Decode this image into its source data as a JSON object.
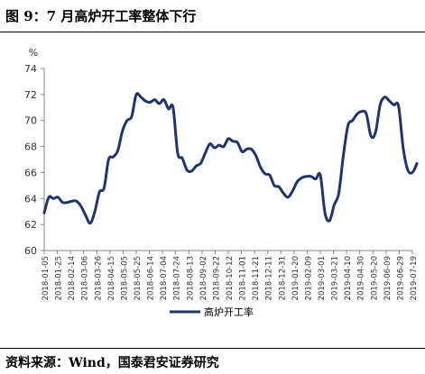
{
  "header": {
    "title": "图 9：7 月高炉开工率整体下行"
  },
  "footer": {
    "source": "资料来源：Wind，国泰君安证券研究"
  },
  "chart_data": {
    "type": "line",
    "ylabel": "%",
    "ylim": [
      60,
      74
    ],
    "yticks": [
      60,
      62,
      64,
      66,
      68,
      70,
      72,
      74
    ],
    "grid": false,
    "legend_position": "bottom",
    "line_color": "#1f3472",
    "x_tick_labels": [
      "2018-01-05",
      "2018-01-25",
      "2018-02-14",
      "2018-03-06",
      "2018-03-26",
      "2018-04-15",
      "2018-05-05",
      "2018-05-25",
      "2018-06-14",
      "2018-07-04",
      "2018-07-24",
      "2018-08-13",
      "2018-09-02",
      "2018-09-22",
      "2018-10-12",
      "2018-11-01",
      "2018-11-21",
      "2018-12-11",
      "2018-12-31",
      "2019-01-20",
      "2019-02-09",
      "2019-03-01",
      "2019-03-21",
      "2019-04-10",
      "2019-04-30",
      "2019-05-20",
      "2019-06-09",
      "2019-06-29",
      "2019-07-19"
    ],
    "series": [
      {
        "name": "高炉开工率",
        "x": [
          "2018-01-05",
          "2018-01-12",
          "2018-01-19",
          "2018-01-26",
          "2018-02-02",
          "2018-02-09",
          "2018-02-16",
          "2018-02-23",
          "2018-03-02",
          "2018-03-09",
          "2018-03-16",
          "2018-03-23",
          "2018-03-30",
          "2018-04-06",
          "2018-04-13",
          "2018-04-20",
          "2018-04-27",
          "2018-05-04",
          "2018-05-11",
          "2018-05-18",
          "2018-05-25",
          "2018-06-01",
          "2018-06-08",
          "2018-06-15",
          "2018-06-22",
          "2018-06-29",
          "2018-07-06",
          "2018-07-13",
          "2018-07-20",
          "2018-07-27",
          "2018-08-03",
          "2018-08-10",
          "2018-08-17",
          "2018-08-24",
          "2018-08-31",
          "2018-09-07",
          "2018-09-14",
          "2018-09-21",
          "2018-09-28",
          "2018-10-05",
          "2018-10-12",
          "2018-10-19",
          "2018-10-26",
          "2018-11-02",
          "2018-11-09",
          "2018-11-16",
          "2018-11-23",
          "2018-11-30",
          "2018-12-07",
          "2018-12-14",
          "2018-12-21",
          "2018-12-28",
          "2019-01-04",
          "2019-01-11",
          "2019-01-18",
          "2019-01-25",
          "2019-02-01",
          "2019-02-08",
          "2019-02-15",
          "2019-02-22",
          "2019-03-01",
          "2019-03-08",
          "2019-03-15",
          "2019-03-22",
          "2019-03-29",
          "2019-04-05",
          "2019-04-12",
          "2019-04-19",
          "2019-04-26",
          "2019-05-03",
          "2019-05-10",
          "2019-05-17",
          "2019-05-24",
          "2019-05-31",
          "2019-06-07",
          "2019-06-14",
          "2019-06-21",
          "2019-06-28",
          "2019-07-05",
          "2019-07-12",
          "2019-07-19",
          "2019-07-26"
        ],
        "values": [
          62.9,
          64.1,
          64.0,
          64.1,
          63.7,
          63.7,
          63.8,
          63.8,
          63.4,
          62.7,
          62.1,
          63.0,
          64.5,
          64.8,
          67.0,
          67.2,
          67.7,
          69.2,
          70.0,
          70.3,
          72.0,
          71.8,
          71.5,
          71.4,
          71.6,
          71.3,
          71.6,
          70.9,
          71.0,
          67.5,
          67.1,
          66.2,
          66.1,
          66.5,
          66.7,
          67.5,
          68.2,
          67.9,
          68.1,
          68.0,
          68.6,
          68.4,
          68.3,
          67.6,
          67.8,
          67.8,
          67.3,
          66.4,
          65.9,
          65.8,
          65.0,
          64.9,
          64.4,
          64.1,
          64.6,
          65.3,
          65.6,
          65.7,
          65.7,
          65.5,
          65.8,
          62.9,
          62.3,
          63.5,
          64.4,
          67.3,
          69.6,
          70.0,
          70.5,
          70.7,
          70.5,
          68.8,
          69.1,
          71.2,
          71.8,
          71.5,
          71.2,
          71.1,
          67.9,
          66.2,
          66.0,
          66.7
        ]
      }
    ]
  }
}
